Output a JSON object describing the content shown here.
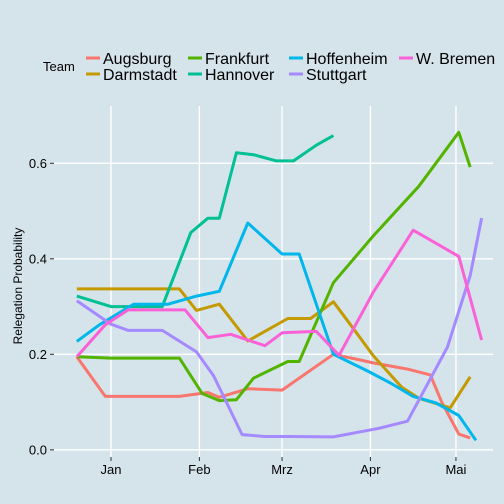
{
  "chart_data": {
    "type": "line",
    "xlabel": "",
    "ylabel": "Relegation Probability",
    "ylim": [
      -0.015,
      0.72
    ],
    "yticks": [
      0.0,
      0.2,
      0.4,
      0.6
    ],
    "ytick_labels": [
      "0.0",
      "0.2",
      "0.4",
      "0.6"
    ],
    "xlim": [
      -20,
      134
    ],
    "xticks": [
      0,
      31,
      60,
      91,
      121
    ],
    "xtick_labels": [
      "Jan",
      "Feb",
      "Mrz",
      "Apr",
      "Mai"
    ],
    "grid": true,
    "legend": {
      "title": "Team",
      "position": "top"
    },
    "series": [
      {
        "name": "Augsburg",
        "color": "#f8766d",
        "x": [
          -12,
          -2,
          10,
          24,
          34,
          38,
          48,
          60,
          78,
          86,
          92,
          104,
          112,
          116,
          122,
          126
        ],
        "y": [
          0.195,
          0.112,
          0.112,
          0.112,
          0.12,
          0.11,
          0.128,
          0.125,
          0.2,
          0.19,
          0.182,
          0.169,
          0.157,
          0.1,
          0.033,
          0.025
        ]
      },
      {
        "name": "Darmstadt",
        "color": "#c49a00",
        "x": [
          -12,
          4,
          12,
          24,
          30,
          38,
          48,
          62,
          70,
          78,
          84,
          92,
          102,
          108,
          119,
          126
        ],
        "y": [
          0.337,
          0.337,
          0.337,
          0.337,
          0.292,
          0.305,
          0.228,
          0.275,
          0.275,
          0.31,
          0.262,
          0.197,
          0.131,
          0.108,
          0.088,
          0.153
        ]
      },
      {
        "name": "Frankfurt",
        "color": "#53b400",
        "x": [
          -12,
          0,
          12,
          24,
          32,
          38,
          44,
          50,
          62,
          66,
          78,
          92,
          108,
          122,
          126
        ],
        "y": [
          0.195,
          0.192,
          0.192,
          0.192,
          0.118,
          0.103,
          0.105,
          0.15,
          0.185,
          0.185,
          0.35,
          0.448,
          0.552,
          0.665,
          0.592
        ]
      },
      {
        "name": "Hannover",
        "color": "#00c094",
        "x": [
          -12,
          0,
          8,
          18,
          28,
          34,
          38,
          44,
          50,
          58,
          64,
          72,
          78
        ],
        "y": [
          0.322,
          0.3,
          0.3,
          0.3,
          0.455,
          0.485,
          0.485,
          0.622,
          0.618,
          0.605,
          0.605,
          0.638,
          0.658
        ]
      },
      {
        "name": "Hoffenheim",
        "color": "#00b6eb",
        "x": [
          -12,
          -4,
          8,
          20,
          30,
          38,
          48,
          60,
          66,
          78,
          90,
          98,
          106,
          114,
          122,
          128
        ],
        "y": [
          0.227,
          0.262,
          0.305,
          0.305,
          0.322,
          0.332,
          0.475,
          0.41,
          0.41,
          0.2,
          0.165,
          0.14,
          0.112,
          0.098,
          0.072,
          0.02
        ]
      },
      {
        "name": "Stuttgart",
        "color": "#a58aff",
        "x": [
          -12,
          0,
          6,
          18,
          30,
          36,
          46,
          54,
          62,
          78,
          94,
          104,
          118,
          126,
          130
        ],
        "y": [
          0.312,
          0.263,
          0.25,
          0.25,
          0.205,
          0.155,
          0.032,
          0.028,
          0.028,
          0.027,
          0.045,
          0.06,
          0.215,
          0.365,
          0.485
        ]
      },
      {
        "name": "W. Bremen",
        "color": "#fb61d7",
        "x": [
          -12,
          -2,
          6,
          18,
          26,
          34,
          42,
          54,
          60,
          72,
          80,
          92,
          106,
          122,
          130
        ],
        "y": [
          0.195,
          0.262,
          0.293,
          0.293,
          0.293,
          0.235,
          0.242,
          0.218,
          0.245,
          0.248,
          0.198,
          0.33,
          0.46,
          0.405,
          0.23
        ]
      }
    ]
  }
}
